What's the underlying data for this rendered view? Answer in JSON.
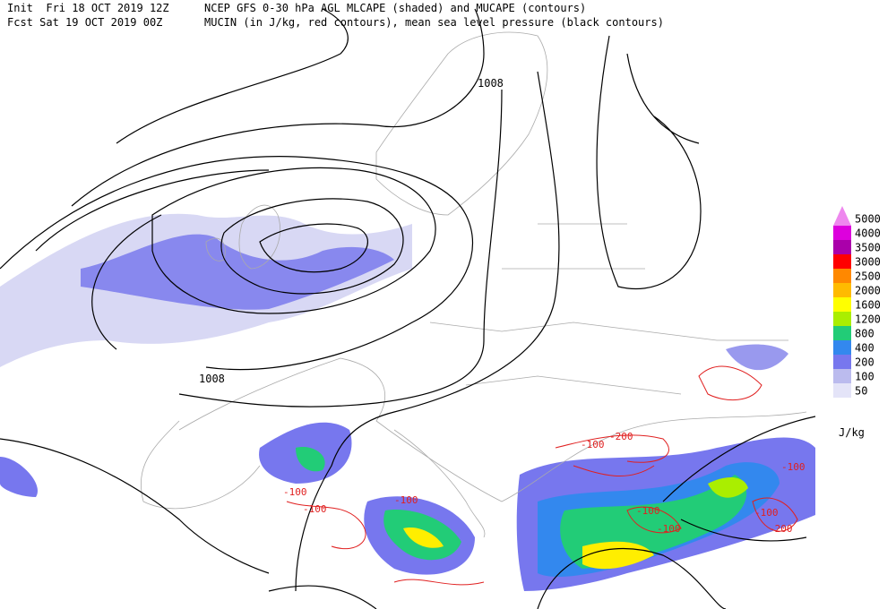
{
  "header": {
    "init": "Init  Fri 18 OCT 2019 12Z",
    "title": "NCEP GFS 0-30 hPa AGL MLCAPE (shaded) and MUCAPE (contours)",
    "fcst": "Fcst Sat 19 OCT 2019 00Z",
    "subtitle": "MUCIN (in J/kg, red contours), mean sea level pressure (black contours)"
  },
  "legend": {
    "unit": "J/kg",
    "levels": [
      {
        "label": "5000",
        "color": "#ee88ee"
      },
      {
        "label": "4000",
        "color": "#dd00dd"
      },
      {
        "label": "3500",
        "color": "#aa00aa"
      },
      {
        "label": "3000",
        "color": "#ff0000"
      },
      {
        "label": "2500",
        "color": "#ff8800"
      },
      {
        "label": "2000",
        "color": "#ffbb00"
      },
      {
        "label": "1600",
        "color": "#ffff00"
      },
      {
        "label": "1200",
        "color": "#aaee00"
      },
      {
        "label": "800",
        "color": "#22cc77"
      },
      {
        "label": "400",
        "color": "#3388ee"
      },
      {
        "label": "200",
        "color": "#7777ee"
      },
      {
        "label": "100",
        "color": "#bbbbee"
      },
      {
        "label": "50",
        "color": "#e4e4f8"
      }
    ]
  },
  "contour_labels": [
    "1008",
    "1008",
    "-100",
    "-100",
    "-100",
    "-200",
    "-100",
    "-100",
    "-100",
    "-100",
    "-200",
    "-100"
  ]
}
